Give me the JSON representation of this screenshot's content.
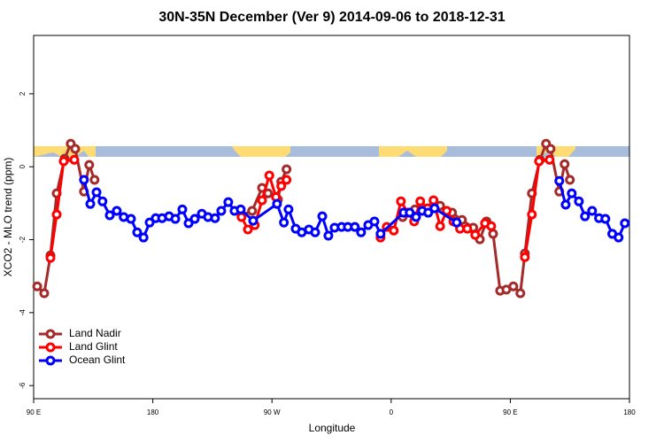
{
  "chart_data": {
    "type": "line",
    "title": "30N-35N December (Ver 9)   2014-09-06 to 2018-12-31",
    "xlabel": "Longitude",
    "ylabel": "XCO2 - MLO trend (ppm)",
    "xlim": [
      90,
      540
    ],
    "xticks": [
      {
        "value": 90,
        "label": "90 E"
      },
      180,
      {
        "value": 270,
        "label": "90 W"
      },
      {
        "value": 360,
        "label": "0"
      },
      {
        "value": 450,
        "label": "90 E"
      },
      {
        "value": 540,
        "label": "180"
      }
    ],
    "ylim": [
      -6.36,
      3.6
    ],
    "yticks": [
      2,
      0,
      -2,
      -4,
      -6
    ],
    "legend": "bottom-left",
    "series": [
      {
        "name": "Land Nadir",
        "color": "#a52a2a",
        "x": [
          92.7,
          98,
          102.7,
          107.4,
          113.4,
          118,
          121.4,
          128,
          132,
          136,
          247,
          255,
          262.5,
          267,
          274.5,
          277,
          281,
          368.7,
          378,
          388,
          397,
          406,
          413.5,
          422,
          427,
          432,
          437,
          442.3,
          447,
          452.3,
          457.6,
          461,
          466.3,
          472.4,
          477,
          480.4,
          487,
          491,
          495
        ],
        "values": [
          -3.28,
          -3.47,
          -2.43,
          -0.73,
          0.22,
          0.63,
          0.49,
          -0.68,
          0.05,
          -0.36,
          -1.33,
          -1.21,
          -0.58,
          -0.73,
          -0.9,
          -0.41,
          -0.07,
          -1.38,
          -1.17,
          -1.26,
          -1.07,
          -1.26,
          -1.46,
          -1.67,
          -1.99,
          -1.5,
          -1.84,
          -3.4,
          -3.37,
          -3.28,
          -3.47,
          -2.38,
          -0.73,
          0.19,
          0.63,
          0.49,
          -0.68,
          0.07,
          -0.36
        ]
      },
      {
        "name": "Land Glint",
        "color": "#ff0000",
        "x": [
          102.7,
          107.4,
          112.7,
          120.7,
          247,
          251.8,
          257,
          262.5,
          268,
          273,
          277,
          281,
          352,
          356.7,
          362,
          367.4,
          372.7,
          377.4,
          382,
          387.5,
          392,
          397,
          402,
          407,
          412,
          417.5,
          423.5,
          430.9,
          435.6,
          461,
          466.3,
          471.7,
          479.7
        ],
        "values": [
          -2.5,
          -1.31,
          0.15,
          0.19,
          -1.38,
          -1.72,
          -1.6,
          -0.92,
          -0.24,
          -0.83,
          -0.53,
          -0.36,
          -1.94,
          -1.65,
          -1.75,
          -0.95,
          -1.26,
          -1.5,
          -0.95,
          -1.14,
          -0.92,
          -1.63,
          -1.21,
          -1.5,
          -1.7,
          -1.7,
          -1.87,
          -1.55,
          -1.63,
          -2.48,
          -1.31,
          0.15,
          0.19
        ]
      },
      {
        "name": "Ocean Glint",
        "color": "#0000ff",
        "x": [
          128,
          132.8,
          137.5,
          142,
          147.5,
          152.8,
          158,
          163.5,
          168.2,
          173,
          177.6,
          182.2,
          187,
          192.3,
          197,
          202.3,
          207,
          211.7,
          217,
          221.7,
          227,
          231.7,
          237,
          241.7,
          246.4,
          255.8,
          273.8,
          279,
          282.5,
          287.9,
          292.5,
          297.9,
          302.6,
          308,
          312.6,
          317.3,
          322.6,
          327.3,
          332.6,
          337.3,
          342.7,
          347.4,
          352,
          369.4,
          374,
          378.8,
          383.4,
          388,
          392.8,
          409.5,
          487,
          491.8,
          496.4,
          501.8,
          506.4,
          511.8,
          517,
          521.8,
          527,
          531.8,
          536.5
        ],
        "values": [
          -0.36,
          -1.02,
          -0.7,
          -0.95,
          -1.33,
          -1.21,
          -1.38,
          -1.43,
          -1.8,
          -1.94,
          -1.53,
          -1.41,
          -1.41,
          -1.36,
          -1.43,
          -1.17,
          -1.55,
          -1.43,
          -1.29,
          -1.38,
          -1.41,
          -1.21,
          -0.97,
          -1.21,
          -1.17,
          -1.48,
          -1.02,
          -1.53,
          -1.17,
          -1.7,
          -1.8,
          -1.72,
          -1.8,
          -1.36,
          -1.89,
          -1.67,
          -1.65,
          -1.65,
          -1.65,
          -1.8,
          -1.6,
          -1.5,
          -1.84,
          -1.26,
          -1.26,
          -1.38,
          -1.21,
          -1.26,
          -1.14,
          -1.53,
          -0.39,
          -1.04,
          -0.73,
          -0.95,
          -1.36,
          -1.21,
          -1.41,
          -1.43,
          -1.84,
          -1.94,
          -1.55
        ]
      }
    ]
  }
}
